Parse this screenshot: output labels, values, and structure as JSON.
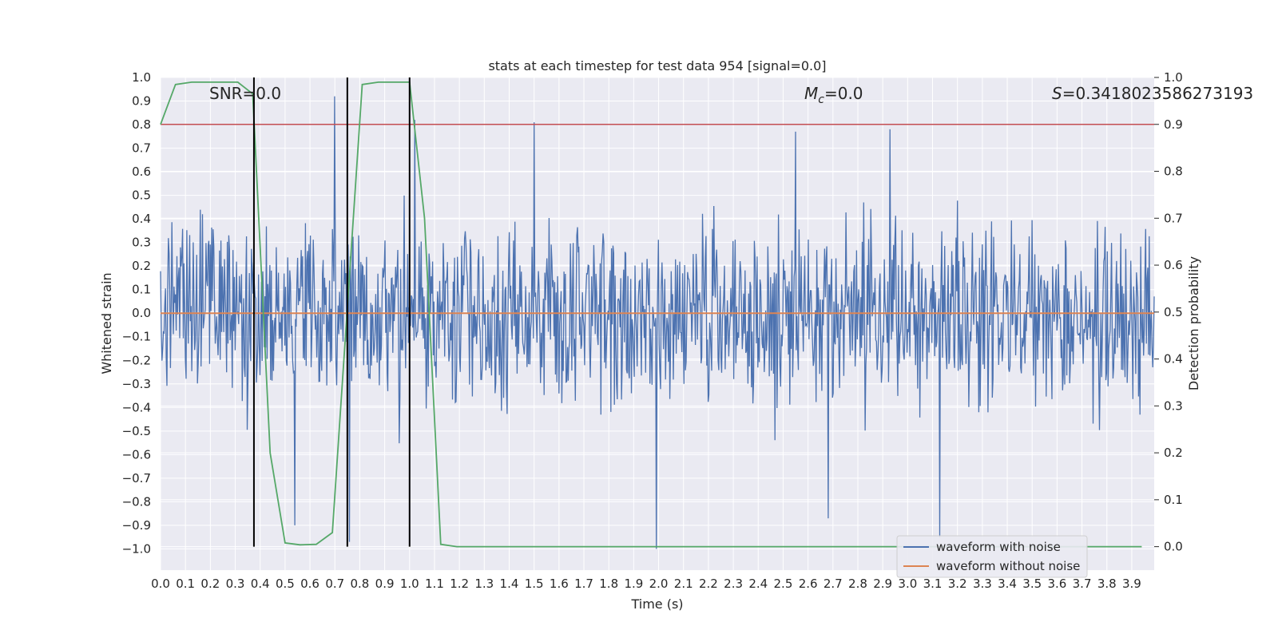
{
  "chart_data": {
    "type": "line",
    "title": "stats at each timestep for test data 954 [signal=0.0]",
    "xlabel": "Time (s)",
    "ylabel": "Whitened strain",
    "y2label": "Detection probability",
    "xlim": [
      0.0,
      3.99
    ],
    "ylim": [
      -1.09,
      1.0
    ],
    "y2lim": [
      -0.05,
      1.0
    ],
    "x_ticks": [
      "0.0",
      "0.1",
      "0.2",
      "0.3",
      "0.4",
      "0.5",
      "0.6",
      "0.7",
      "0.8",
      "0.9",
      "1.0",
      "1.1",
      "1.2",
      "1.3",
      "1.4",
      "1.5",
      "1.6",
      "1.7",
      "1.8",
      "1.9",
      "2.0",
      "2.1",
      "2.2",
      "2.3",
      "2.4",
      "2.5",
      "2.6",
      "2.7",
      "2.8",
      "2.9",
      "3.0",
      "3.1",
      "3.2",
      "3.3",
      "3.4",
      "3.5",
      "3.6",
      "3.7",
      "3.8",
      "3.9"
    ],
    "y_ticks": [
      "1.0",
      "0.9",
      "0.8",
      "0.7",
      "0.6",
      "0.5",
      "0.4",
      "0.3",
      "0.2",
      "0.1",
      "0.0",
      "−0.1",
      "−0.2",
      "−0.3",
      "−0.4",
      "−0.5",
      "−0.6",
      "−0.7",
      "−0.8",
      "−0.9",
      "−1.0"
    ],
    "y2_ticks": [
      "1.0",
      "0.9",
      "0.8",
      "0.7",
      "0.6",
      "0.5",
      "0.4",
      "0.3",
      "0.2",
      "0.1",
      "0.0"
    ],
    "annotations": {
      "snr": "SNR=0.0",
      "mc_symbol": "M",
      "mc_sub": "c",
      "mc_value": "=0.0",
      "s_symbol": "S",
      "s_value": "=0.3418023586273193"
    },
    "series": [
      {
        "name": "waveform with noise",
        "color": "#4c72b0",
        "axis": "left",
        "description_level": "noise samples mostly within ±0.6 with spikes to about ±1.0",
        "spikes": [
          {
            "x": 0.7,
            "y": 0.92
          },
          {
            "x": 1.02,
            "y": 0.82
          },
          {
            "x": 1.5,
            "y": 0.81
          },
          {
            "x": 2.55,
            "y": 0.77
          },
          {
            "x": 2.93,
            "y": 0.78
          },
          {
            "x": 1.99,
            "y": -1.0
          },
          {
            "x": 3.13,
            "y": -0.95
          },
          {
            "x": 0.54,
            "y": -0.9
          },
          {
            "x": 0.76,
            "y": -0.97
          },
          {
            "x": 2.68,
            "y": -0.87
          }
        ]
      },
      {
        "name": "waveform without noise",
        "color": "#dd8452",
        "axis": "left",
        "x": [
          0.0,
          3.99
        ],
        "y": [
          0.0,
          0.0
        ]
      },
      {
        "name": "",
        "color": "#55a868",
        "axis": "right",
        "x": [
          0.0,
          0.06,
          0.125,
          0.19,
          0.31,
          0.37,
          0.44,
          0.5,
          0.56,
          0.625,
          0.69,
          0.81,
          0.875,
          0.94,
          1.0,
          1.06,
          1.125,
          1.19,
          1.25,
          1.5,
          2.0,
          2.5,
          3.0,
          3.5,
          3.94
        ],
        "y": [
          0.9,
          0.985,
          0.99,
          0.99,
          0.99,
          0.965,
          0.2,
          0.008,
          0.004,
          0.005,
          0.03,
          0.985,
          0.99,
          0.99,
          0.99,
          0.7,
          0.005,
          0.0,
          0.0,
          0.0,
          0.0,
          0.0,
          0.0,
          0.0,
          0.0
        ]
      }
    ],
    "hlines": [
      {
        "axis": "right",
        "y": 0.9,
        "color": "#c44e52"
      }
    ],
    "vlines": [
      {
        "x": 0.375,
        "color": "#000000"
      },
      {
        "x": 0.75,
        "color": "#000000"
      },
      {
        "x": 1.0,
        "color": "#000000"
      }
    ],
    "legend": {
      "placement": "lower-right",
      "entries": [
        {
          "label": "waveform with noise",
          "color": "#4c72b0"
        },
        {
          "label": "waveform without noise",
          "color": "#dd8452"
        }
      ]
    },
    "colors": {
      "plot_background": "#eaeaf2",
      "grid": "#ffffff"
    },
    "grid": true
  }
}
